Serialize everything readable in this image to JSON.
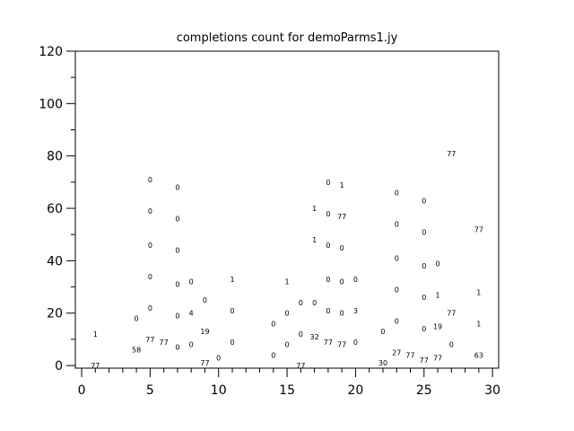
{
  "chart_data": {
    "type": "scatter",
    "title": "completions count for demoParms1.jy",
    "xlabel": "",
    "ylabel": "",
    "xlim": [
      -0.46,
      30.45
    ],
    "ylim": [
      -1,
      120
    ],
    "x_ticks": [
      0,
      5,
      10,
      15,
      20,
      25,
      30
    ],
    "y_ticks": [
      0,
      20,
      40,
      60,
      80,
      100,
      120
    ],
    "grid": false,
    "marker": "text labels",
    "points": [
      {
        "x": 1,
        "y": 12,
        "label": "1"
      },
      {
        "x": 1,
        "y": 0,
        "label": "77"
      },
      {
        "x": 4,
        "y": 18,
        "label": "0"
      },
      {
        "x": 4,
        "y": 6,
        "label": "58"
      },
      {
        "x": 5,
        "y": 71,
        "label": "0"
      },
      {
        "x": 5,
        "y": 59,
        "label": "0"
      },
      {
        "x": 5,
        "y": 46,
        "label": "0"
      },
      {
        "x": 5,
        "y": 34,
        "label": "0"
      },
      {
        "x": 5,
        "y": 22,
        "label": "0"
      },
      {
        "x": 5,
        "y": 10,
        "label": "77"
      },
      {
        "x": 6,
        "y": 9,
        "label": "77"
      },
      {
        "x": 7,
        "y": 68,
        "label": "0"
      },
      {
        "x": 7,
        "y": 56,
        "label": "0"
      },
      {
        "x": 7,
        "y": 44,
        "label": "0"
      },
      {
        "x": 7,
        "y": 31,
        "label": "0"
      },
      {
        "x": 7,
        "y": 19,
        "label": "0"
      },
      {
        "x": 7,
        "y": 7,
        "label": "0"
      },
      {
        "x": 8,
        "y": 32,
        "label": "0"
      },
      {
        "x": 8,
        "y": 20,
        "label": "4"
      },
      {
        "x": 8,
        "y": 8,
        "label": "0"
      },
      {
        "x": 9,
        "y": 25,
        "label": "0"
      },
      {
        "x": 9,
        "y": 13,
        "label": "19"
      },
      {
        "x": 9,
        "y": 1,
        "label": "77"
      },
      {
        "x": 10,
        "y": 3,
        "label": "0"
      },
      {
        "x": 11,
        "y": 33,
        "label": "1"
      },
      {
        "x": 11,
        "y": 21,
        "label": "0"
      },
      {
        "x": 11,
        "y": 9,
        "label": "0"
      },
      {
        "x": 14,
        "y": 16,
        "label": "0"
      },
      {
        "x": 14,
        "y": 4,
        "label": "0"
      },
      {
        "x": 15,
        "y": 32,
        "label": "1"
      },
      {
        "x": 15,
        "y": 20,
        "label": "0"
      },
      {
        "x": 15,
        "y": 8,
        "label": "0"
      },
      {
        "x": 16,
        "y": 24,
        "label": "0"
      },
      {
        "x": 16,
        "y": 12,
        "label": "0"
      },
      {
        "x": 16,
        "y": 0,
        "label": "77"
      },
      {
        "x": 17,
        "y": 60,
        "label": "1"
      },
      {
        "x": 17,
        "y": 48,
        "label": "1"
      },
      {
        "x": 17,
        "y": 24,
        "label": "0"
      },
      {
        "x": 17,
        "y": 11,
        "label": "32"
      },
      {
        "x": 18,
        "y": 70,
        "label": "0"
      },
      {
        "x": 18,
        "y": 58,
        "label": "0"
      },
      {
        "x": 18,
        "y": 46,
        "label": "0"
      },
      {
        "x": 18,
        "y": 33,
        "label": "0"
      },
      {
        "x": 18,
        "y": 21,
        "label": "0"
      },
      {
        "x": 18,
        "y": 9,
        "label": "77"
      },
      {
        "x": 19,
        "y": 69,
        "label": "1"
      },
      {
        "x": 19,
        "y": 57,
        "label": "77"
      },
      {
        "x": 19,
        "y": 45,
        "label": "0"
      },
      {
        "x": 19,
        "y": 32,
        "label": "0"
      },
      {
        "x": 19,
        "y": 20,
        "label": "0"
      },
      {
        "x": 19,
        "y": 8,
        "label": "77"
      },
      {
        "x": 20,
        "y": 33,
        "label": "0"
      },
      {
        "x": 20,
        "y": 21,
        "label": "3"
      },
      {
        "x": 20,
        "y": 9,
        "label": "0"
      },
      {
        "x": 22,
        "y": 13,
        "label": "0"
      },
      {
        "x": 22,
        "y": 1,
        "label": "30"
      },
      {
        "x": 23,
        "y": 66,
        "label": "0"
      },
      {
        "x": 23,
        "y": 54,
        "label": "0"
      },
      {
        "x": 23,
        "y": 41,
        "label": "0"
      },
      {
        "x": 23,
        "y": 29,
        "label": "0"
      },
      {
        "x": 23,
        "y": 17,
        "label": "0"
      },
      {
        "x": 23,
        "y": 5,
        "label": "27"
      },
      {
        "x": 24,
        "y": 4,
        "label": "77"
      },
      {
        "x": 25,
        "y": 63,
        "label": "0"
      },
      {
        "x": 25,
        "y": 51,
        "label": "0"
      },
      {
        "x": 25,
        "y": 38,
        "label": "0"
      },
      {
        "x": 25,
        "y": 26,
        "label": "0"
      },
      {
        "x": 25,
        "y": 14,
        "label": "0"
      },
      {
        "x": 25,
        "y": 2,
        "label": "77"
      },
      {
        "x": 26,
        "y": 39,
        "label": "0"
      },
      {
        "x": 26,
        "y": 27,
        "label": "1"
      },
      {
        "x": 26,
        "y": 15,
        "label": "19"
      },
      {
        "x": 26,
        "y": 3,
        "label": "77"
      },
      {
        "x": 27,
        "y": 81,
        "label": "77"
      },
      {
        "x": 27,
        "y": 20,
        "label": "77"
      },
      {
        "x": 27,
        "y": 8,
        "label": "0"
      },
      {
        "x": 29,
        "y": 52,
        "label": "77"
      },
      {
        "x": 29,
        "y": 28,
        "label": "1"
      },
      {
        "x": 29,
        "y": 16,
        "label": "1"
      },
      {
        "x": 29,
        "y": 4,
        "label": "63"
      }
    ]
  }
}
